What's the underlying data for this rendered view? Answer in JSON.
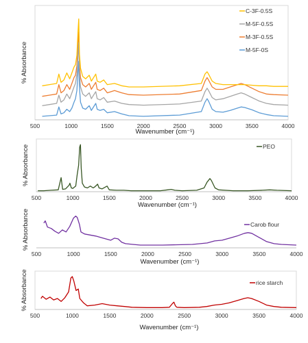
{
  "chart_data": [
    {
      "type": "line",
      "title": "",
      "xlabel": "Wavenumber (cm⁻¹)",
      "ylabel": "% Absorbance",
      "xlim": [
        500,
        4000
      ],
      "x_ticks": [
        "500",
        "1000",
        "1500",
        "2000",
        "2500",
        "3000",
        "3500",
        "4000"
      ],
      "legend_position": "top-right",
      "series": [
        {
          "name": "M-5F-0S",
          "color": "#5b9bd5",
          "x": [
            600,
            700,
            800,
            830,
            860,
            900,
            940,
            980,
            1010,
            1040,
            1060,
            1080,
            1095,
            1105,
            1115,
            1130,
            1160,
            1200,
            1250,
            1280,
            1300,
            1340,
            1360,
            1400,
            1450,
            1500,
            1600,
            1700,
            1800,
            2000,
            2500,
            2800,
            2850,
            2880,
            2900,
            2950,
            3000,
            3100,
            3200,
            3300,
            3350,
            3400,
            3500,
            3600,
            3700,
            3800,
            4000
          ],
          "y": [
            0.06,
            0.07,
            0.08,
            0.22,
            0.1,
            0.12,
            0.18,
            0.14,
            0.2,
            0.3,
            0.36,
            0.5,
            0.82,
            1.0,
            0.55,
            0.3,
            0.2,
            0.18,
            0.24,
            0.16,
            0.2,
            0.28,
            0.18,
            0.16,
            0.18,
            0.12,
            0.14,
            0.1,
            0.07,
            0.06,
            0.08,
            0.14,
            0.3,
            0.36,
            0.32,
            0.18,
            0.14,
            0.13,
            0.16,
            0.2,
            0.22,
            0.21,
            0.17,
            0.12,
            0.09,
            0.07,
            0.06
          ]
        },
        {
          "name": "M-3F-0.5S",
          "color": "#ed7d31",
          "x": [
            600,
            700,
            800,
            830,
            860,
            900,
            940,
            980,
            1010,
            1040,
            1060,
            1080,
            1095,
            1105,
            1115,
            1130,
            1160,
            1200,
            1250,
            1280,
            1300,
            1340,
            1360,
            1400,
            1450,
            1500,
            1600,
            1700,
            1800,
            2000,
            2500,
            2800,
            2850,
            2880,
            2900,
            2950,
            3000,
            3100,
            3200,
            3300,
            3350,
            3400,
            3500,
            3600,
            3700,
            3800,
            4000
          ],
          "y": [
            0.4,
            0.42,
            0.44,
            0.6,
            0.46,
            0.5,
            0.6,
            0.52,
            0.62,
            0.72,
            0.76,
            0.92,
            1.3,
            1.5,
            0.95,
            0.72,
            0.6,
            0.56,
            0.62,
            0.52,
            0.56,
            0.64,
            0.52,
            0.5,
            0.54,
            0.46,
            0.5,
            0.46,
            0.43,
            0.42,
            0.44,
            0.5,
            0.66,
            0.72,
            0.68,
            0.56,
            0.52,
            0.52,
            0.56,
            0.6,
            0.62,
            0.6,
            0.54,
            0.48,
            0.44,
            0.43,
            0.42
          ]
        },
        {
          "name": "M-5F-0.5S",
          "color": "#a5a5a5",
          "x": [
            600,
            700,
            800,
            830,
            860,
            900,
            940,
            980,
            1010,
            1040,
            1060,
            1080,
            1095,
            1105,
            1115,
            1130,
            1160,
            1200,
            1250,
            1280,
            1300,
            1340,
            1360,
            1400,
            1450,
            1500,
            1600,
            1700,
            1800,
            2000,
            2500,
            2800,
            2850,
            2880,
            2900,
            2950,
            3000,
            3100,
            3200,
            3300,
            3350,
            3400,
            3500,
            3600,
            3700,
            3800,
            4000
          ],
          "y": [
            0.24,
            0.26,
            0.28,
            0.42,
            0.3,
            0.34,
            0.44,
            0.36,
            0.46,
            0.56,
            0.62,
            0.78,
            1.1,
            1.32,
            0.8,
            0.56,
            0.44,
            0.4,
            0.46,
            0.36,
            0.4,
            0.48,
            0.36,
            0.34,
            0.38,
            0.3,
            0.32,
            0.28,
            0.26,
            0.25,
            0.27,
            0.32,
            0.48,
            0.54,
            0.5,
            0.38,
            0.34,
            0.36,
            0.4,
            0.44,
            0.46,
            0.44,
            0.38,
            0.32,
            0.28,
            0.26,
            0.25
          ]
        },
        {
          "name": "C-3F-0.5S",
          "color": "#ffc000",
          "x": [
            600,
            700,
            800,
            830,
            860,
            900,
            940,
            980,
            1010,
            1040,
            1060,
            1080,
            1095,
            1105,
            1115,
            1130,
            1160,
            1200,
            1250,
            1280,
            1300,
            1340,
            1360,
            1400,
            1450,
            1500,
            1600,
            1700,
            1800,
            2000,
            2500,
            2800,
            2850,
            2880,
            2900,
            2950,
            3000,
            3100,
            3200,
            3300,
            3350,
            3400,
            3500,
            3600,
            3700,
            3800,
            4000
          ],
          "y": [
            0.58,
            0.6,
            0.62,
            0.78,
            0.64,
            0.68,
            0.8,
            0.7,
            0.8,
            0.9,
            0.94,
            1.1,
            1.5,
            1.72,
            1.12,
            0.88,
            0.74,
            0.7,
            0.76,
            0.66,
            0.7,
            0.78,
            0.66,
            0.64,
            0.68,
            0.6,
            0.62,
            0.58,
            0.56,
            0.56,
            0.58,
            0.62,
            0.78,
            0.82,
            0.78,
            0.66,
            0.62,
            0.6,
            0.6,
            0.6,
            0.6,
            0.6,
            0.59,
            0.58,
            0.58,
            0.57,
            0.57
          ]
        }
      ]
    },
    {
      "type": "line",
      "title": "",
      "xlabel": "Wavenumber (cm⁻¹)",
      "ylabel": "% Absorbance",
      "xlim": [
        500,
        4000
      ],
      "x_ticks": [
        "500",
        "1000",
        "1500",
        "2000",
        "2500",
        "3000",
        "3500",
        "4000"
      ],
      "legend_position": "top-right",
      "series": [
        {
          "name": "PEO",
          "color": "#375623",
          "x": [
            520,
            600,
            700,
            800,
            840,
            860,
            900,
            950,
            960,
            980,
            1000,
            1040,
            1060,
            1080,
            1095,
            1105,
            1115,
            1130,
            1160,
            1200,
            1240,
            1280,
            1300,
            1340,
            1360,
            1400,
            1470,
            1500,
            1600,
            1700,
            1800,
            2000,
            2200,
            2300,
            2350,
            2400,
            2500,
            2700,
            2800,
            2840,
            2880,
            2900,
            2950,
            3000,
            3200,
            3400,
            3600,
            3700,
            3800,
            4000
          ],
          "y": [
            0.02,
            0.02,
            0.03,
            0.04,
            0.3,
            0.05,
            0.06,
            0.14,
            0.18,
            0.08,
            0.07,
            0.12,
            0.36,
            0.56,
            0.95,
            1.0,
            0.5,
            0.18,
            0.1,
            0.08,
            0.12,
            0.08,
            0.1,
            0.16,
            0.08,
            0.06,
            0.12,
            0.04,
            0.03,
            0.03,
            0.02,
            0.02,
            0.02,
            0.04,
            0.05,
            0.03,
            0.02,
            0.03,
            0.08,
            0.2,
            0.28,
            0.24,
            0.08,
            0.04,
            0.02,
            0.02,
            0.03,
            0.04,
            0.03,
            0.02
          ]
        }
      ]
    },
    {
      "type": "line",
      "title": "",
      "xlabel": "Wavenumber (cm⁻¹)",
      "ylabel": "% Absorbance",
      "xlim": [
        500,
        4000
      ],
      "x_ticks": [
        "500",
        "1000",
        "1500",
        "2000",
        "2500",
        "3000",
        "3500",
        "4000"
      ],
      "legend_position": "top-right",
      "series": [
        {
          "name": "Carob flour",
          "color": "#7030a0",
          "x": [
            600,
            620,
            650,
            700,
            750,
            800,
            850,
            900,
            950,
            1000,
            1030,
            1050,
            1080,
            1100,
            1150,
            1200,
            1300,
            1400,
            1500,
            1550,
            1600,
            1650,
            1700,
            1800,
            1900,
            2000,
            2200,
            2400,
            2600,
            2800,
            2900,
            3000,
            3100,
            3200,
            3300,
            3350,
            3400,
            3500,
            3600,
            3700,
            3800,
            4000
          ],
          "y": [
            0.72,
            0.78,
            0.6,
            0.56,
            0.48,
            0.42,
            0.52,
            0.46,
            0.62,
            0.86,
            0.92,
            0.88,
            0.68,
            0.46,
            0.4,
            0.38,
            0.34,
            0.28,
            0.22,
            0.28,
            0.26,
            0.16,
            0.12,
            0.1,
            0.08,
            0.08,
            0.08,
            0.09,
            0.1,
            0.14,
            0.2,
            0.22,
            0.28,
            0.34,
            0.42,
            0.44,
            0.42,
            0.3,
            0.18,
            0.12,
            0.1,
            0.08
          ]
        }
      ]
    },
    {
      "type": "line",
      "title": "",
      "xlabel": "Wavenumber (cm⁻¹)",
      "ylabel": "% Absorbance",
      "xlim": [
        500,
        4000
      ],
      "x_ticks": [
        "500",
        "1000",
        "1500",
        "2000",
        "2500",
        "3000",
        "3500",
        "4000"
      ],
      "legend_position": "top-right",
      "series": [
        {
          "name": "rice starch",
          "color": "#c00000",
          "x": [
            580,
            600,
            650,
            700,
            750,
            800,
            850,
            900,
            950,
            980,
            1000,
            1020,
            1050,
            1080,
            1100,
            1150,
            1200,
            1300,
            1400,
            1500,
            1600,
            1700,
            1800,
            2000,
            2200,
            2300,
            2340,
            2360,
            2380,
            2400,
            2500,
            2700,
            2800,
            2900,
            3000,
            3100,
            3200,
            3300,
            3350,
            3400,
            3500,
            3600,
            3700,
            3800,
            4000
          ],
          "y": [
            0.3,
            0.36,
            0.28,
            0.34,
            0.26,
            0.3,
            0.22,
            0.32,
            0.48,
            0.86,
            0.9,
            0.78,
            0.52,
            0.56,
            0.3,
            0.18,
            0.1,
            0.12,
            0.16,
            0.12,
            0.1,
            0.08,
            0.06,
            0.05,
            0.05,
            0.06,
            0.16,
            0.2,
            0.1,
            0.06,
            0.05,
            0.06,
            0.08,
            0.12,
            0.14,
            0.18,
            0.24,
            0.3,
            0.32,
            0.3,
            0.22,
            0.12,
            0.08,
            0.06,
            0.05
          ]
        }
      ]
    }
  ]
}
